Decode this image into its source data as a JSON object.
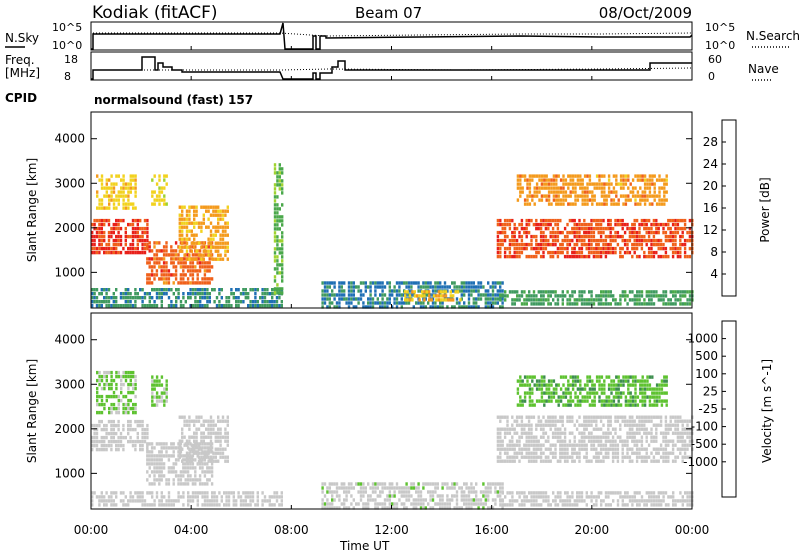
{
  "header": {
    "station": "Kodiak (fitACF)",
    "beam": "Beam 07",
    "date": "08/Oct/2009"
  },
  "top_panels": {
    "nsky_label": "N.Sky",
    "nsky_ticks": [
      "10^5",
      "10^0"
    ],
    "nsearch_label": "N.Search",
    "nsearch_ticks": [
      "10^5",
      "10^0"
    ],
    "freq_label_1": "Freq.",
    "freq_label_2": "[MHz]",
    "freq_ticks": [
      "18",
      "8"
    ],
    "nave_label": "Nave",
    "nave_ticks": [
      "60",
      "0"
    ],
    "cpid_label": "CPID",
    "cpid_value": "normalsound (fast) 157"
  },
  "colors": {
    "power": [
      "#1a1ae6",
      "#1e6fb4",
      "#3f9a5f",
      "#4aa84a",
      "#9fd330",
      "#f2d21e",
      "#f49a1c",
      "#f0601a",
      "#e8201a",
      "#d0140f"
    ],
    "velocity": [
      "#1a33cc",
      "#2f6cb0",
      "#3d8e4e",
      "#5ec230",
      "#c8c8c8",
      "#c8c8c8",
      "#f5a623",
      "#f07a18",
      "#ee4a14",
      "#e0140c"
    ]
  },
  "chart_data": [
    {
      "type": "heatmap",
      "name": "power",
      "ylabel": "Slant Range [km]",
      "yticks": [
        1000,
        2000,
        3000,
        4000
      ],
      "ylim": [
        200,
        4600
      ],
      "xlim": [
        0,
        24
      ],
      "colorbar": {
        "label": "Power [dB]",
        "ticks": [
          "4",
          "8",
          "12",
          "16",
          "20",
          "24",
          "28"
        ],
        "range": [
          0,
          32
        ]
      },
      "regions": [
        {
          "t0": 0.0,
          "t1": 2.3,
          "r0": 1450,
          "r1": 2200,
          "v": 26
        },
        {
          "t0": 0.2,
          "t1": 1.8,
          "r0": 2400,
          "r1": 3200,
          "v": 18
        },
        {
          "t0": 2.4,
          "t1": 3.0,
          "r0": 2500,
          "r1": 3200,
          "v": 17
        },
        {
          "t0": 2.2,
          "t1": 4.8,
          "r0": 800,
          "r1": 1700,
          "v": 24
        },
        {
          "t0": 3.5,
          "t1": 5.5,
          "r0": 1300,
          "r1": 2500,
          "v": 20
        },
        {
          "t0": 0.0,
          "t1": 7.6,
          "r0": 250,
          "r1": 650,
          "v": 7
        },
        {
          "t0": 7.3,
          "t1": 7.6,
          "r0": 550,
          "r1": 3450,
          "v": 12
        },
        {
          "t0": 9.2,
          "t1": 16.4,
          "r0": 250,
          "r1": 800,
          "v": 6
        },
        {
          "t0": 12.5,
          "t1": 14.8,
          "r0": 380,
          "r1": 600,
          "v": 19
        },
        {
          "t0": 16.2,
          "t1": 24.0,
          "r0": 1350,
          "r1": 2200,
          "v": 25
        },
        {
          "t0": 17.0,
          "t1": 23.0,
          "r0": 2500,
          "r1": 3200,
          "v": 21
        },
        {
          "t0": 16.3,
          "t1": 24.0,
          "r0": 250,
          "r1": 600,
          "v": 9
        }
      ]
    },
    {
      "type": "heatmap",
      "name": "velocity",
      "ylabel": "Slant Range [km]",
      "yticks": [
        1000,
        2000,
        3000,
        4000
      ],
      "ylim": [
        200,
        4600
      ],
      "xlim": [
        0,
        24
      ],
      "colorbar": {
        "label": "Velocity [m s^-1]",
        "ticks": [
          "1000",
          "500",
          "100",
          "25",
          "-25",
          "-100",
          "-500",
          "-1000"
        ],
        "range": [
          -1200,
          1200
        ]
      },
      "regions": [
        {
          "t0": 0.0,
          "t1": 2.3,
          "r0": 1500,
          "r1": 2200,
          "v": 0
        },
        {
          "t0": 0.2,
          "t1": 1.8,
          "r0": 2400,
          "r1": 3300,
          "v": -300
        },
        {
          "t0": 2.4,
          "t1": 3.0,
          "r0": 2500,
          "r1": 3200,
          "v": -300
        },
        {
          "t0": 2.2,
          "t1": 4.8,
          "r0": 800,
          "r1": 1700,
          "v": 60
        },
        {
          "t0": 3.5,
          "t1": 5.5,
          "r0": 1300,
          "r1": 2300,
          "v": 0
        },
        {
          "t0": 0.0,
          "t1": 7.6,
          "r0": 250,
          "r1": 600,
          "v": 0
        },
        {
          "t0": 9.2,
          "t1": 16.4,
          "r0": 250,
          "r1": 800,
          "v": -120
        },
        {
          "t0": 16.2,
          "t1": 24.0,
          "r0": 1300,
          "r1": 2300,
          "v": 0
        },
        {
          "t0": 17.0,
          "t1": 23.0,
          "r0": 2500,
          "r1": 3200,
          "v": -400
        },
        {
          "t0": 16.3,
          "t1": 24.0,
          "r0": 250,
          "r1": 600,
          "v": 0
        }
      ]
    }
  ],
  "time_axis": {
    "label": "Time UT",
    "ticks": [
      "00:00",
      "04:00",
      "08:00",
      "12:00",
      "16:00",
      "20:00",
      "00:00"
    ],
    "values": [
      0,
      4,
      8,
      12,
      16,
      20,
      24
    ]
  }
}
